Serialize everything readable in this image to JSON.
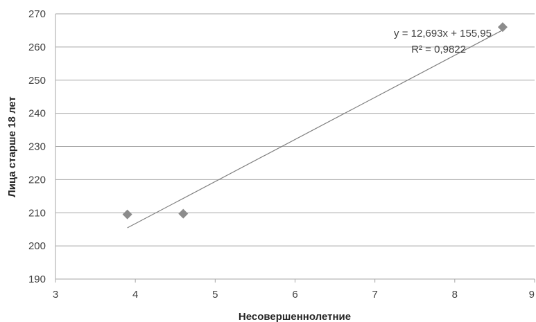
{
  "chart_data": {
    "type": "scatter",
    "title": "",
    "xlabel": "Несовершеннолетние",
    "ylabel": "Лица старше 18 лет",
    "xlim": [
      3,
      9
    ],
    "ylim": [
      190,
      270
    ],
    "x_ticks": [
      "3",
      "4",
      "5",
      "6",
      "7",
      "8",
      "9"
    ],
    "y_ticks": [
      "190",
      "200",
      "210",
      "220",
      "230",
      "240",
      "250",
      "260",
      "270"
    ],
    "grid": "horizontal",
    "legend": "none",
    "series": [
      {
        "points": [
          {
            "x": 3.9,
            "y": 209.5
          },
          {
            "x": 4.6,
            "y": 209.7
          },
          {
            "x": 8.6,
            "y": 266
          }
        ]
      }
    ],
    "trendline": {
      "type": "linear",
      "slope": 12.693,
      "intercept": 155.95,
      "x_range": [
        3.9,
        8.6
      ],
      "equation": "y = 12,693x + 155,95",
      "r_squared": "R² = 0,9822"
    },
    "colors": {
      "marker": "#8c8c8c",
      "trendline": "#7f7f7f",
      "grid": "#a6a6a6"
    }
  }
}
